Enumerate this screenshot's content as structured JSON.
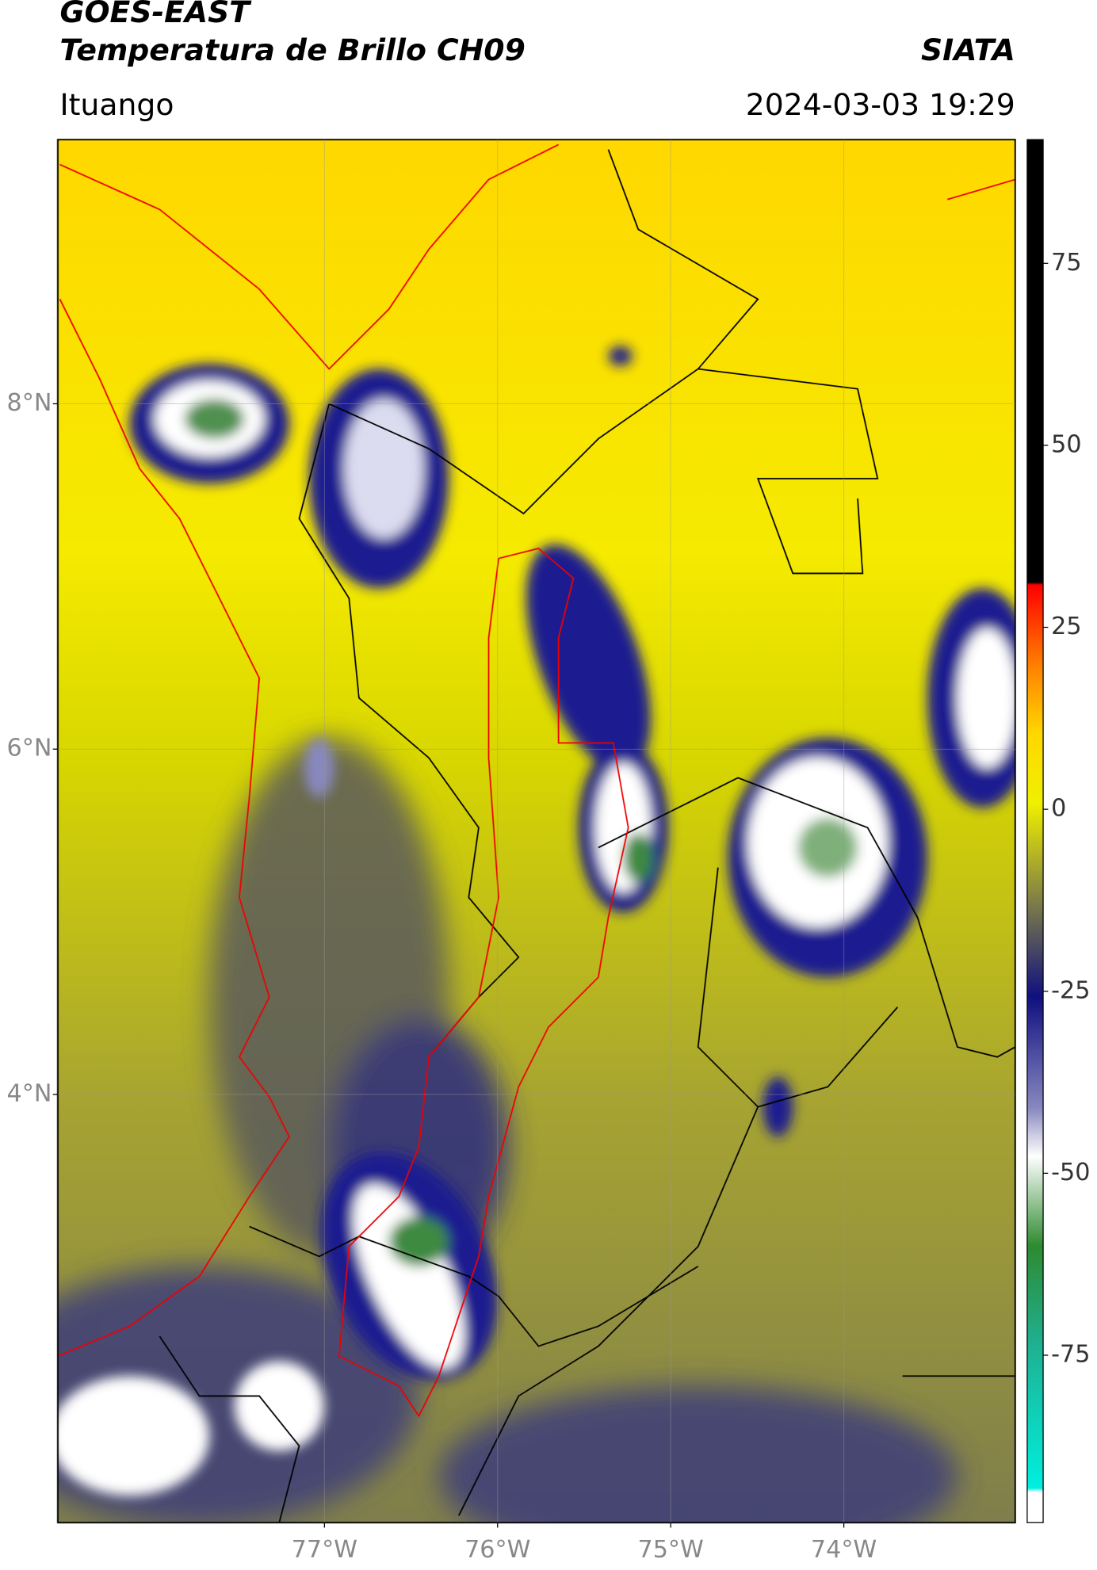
{
  "chart_data": {
    "type": "map",
    "title": "GOES-EAST",
    "subtitle": "Temperatura de Brillo CH09",
    "source": "SIATA",
    "location": "Ituango",
    "timestamp": "2024-03-03 19:29",
    "xlim": [
      -78.54,
      -73.01
    ],
    "xticks": [
      {
        "value": -77,
        "label": "77°W"
      },
      {
        "value": -76,
        "label": "76°W"
      },
      {
        "value": -75,
        "label": "75°W"
      },
      {
        "value": -74,
        "label": "74°W"
      }
    ],
    "ylim": [
      1.52,
      9.53
    ],
    "yticks": [
      {
        "value": 8,
        "label": "8°N"
      },
      {
        "value": 6,
        "label": "6°N"
      },
      {
        "value": 4,
        "label": "4°N"
      }
    ],
    "grid": true,
    "colorbar": {
      "lim": [
        -98,
        92
      ],
      "ticks": [
        75,
        50,
        25,
        0,
        -25,
        -50,
        -75
      ]
    }
  }
}
